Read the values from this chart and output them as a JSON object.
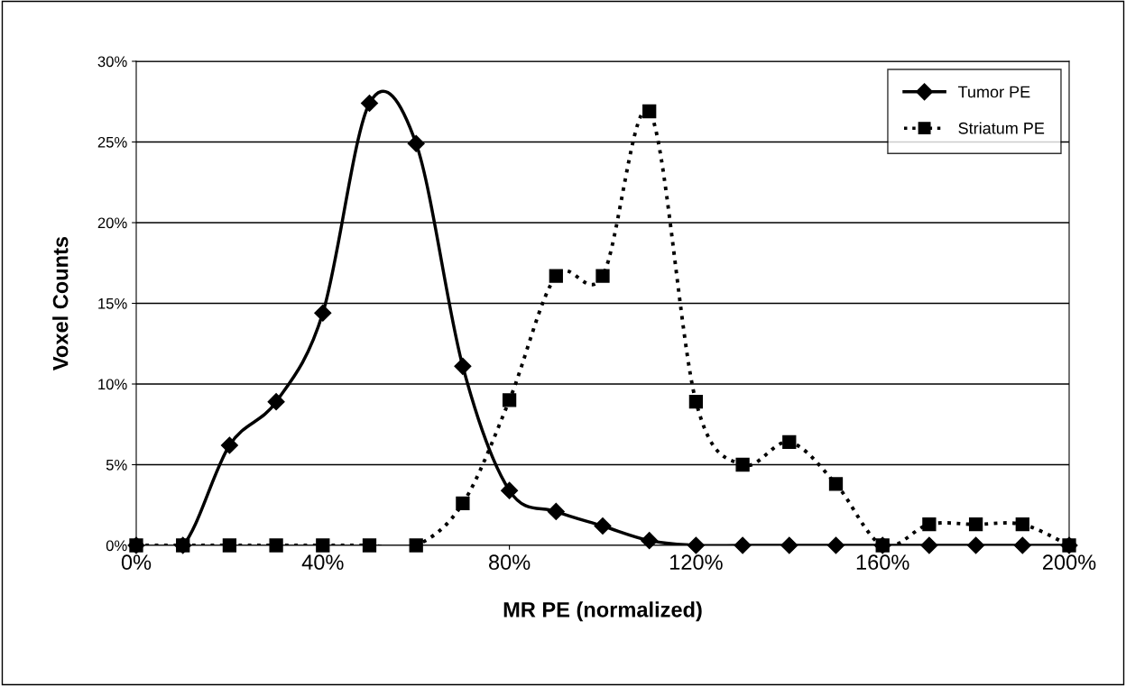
{
  "chart_data": {
    "type": "line",
    "xlabel": "MR PE (normalized)",
    "ylabel": "Voxel Counts",
    "x": [
      0,
      10,
      20,
      30,
      40,
      50,
      60,
      70,
      80,
      90,
      100,
      110,
      120,
      130,
      140,
      150,
      160,
      170,
      180,
      190,
      200
    ],
    "series": [
      {
        "name": "Tumor PE",
        "color": "#000000",
        "marker": "diamond",
        "line_style": "solid",
        "values": [
          0,
          0,
          6.2,
          8.9,
          14.4,
          27.4,
          24.9,
          11.1,
          3.4,
          2.1,
          1.2,
          0.3,
          0,
          0,
          0,
          0,
          0,
          0,
          0,
          0,
          0
        ]
      },
      {
        "name": "Striatum PE",
        "color": "#000000",
        "marker": "square",
        "line_style": "dotted",
        "values": [
          0,
          0,
          0,
          0,
          0,
          0,
          0,
          2.6,
          9.0,
          16.7,
          16.7,
          26.9,
          8.9,
          5.0,
          6.4,
          3.8,
          0,
          1.3,
          1.3,
          1.3,
          0
        ]
      }
    ],
    "xlim": [
      0,
      200
    ],
    "ylim": [
      0,
      30
    ],
    "xticks": [
      {
        "value": 0,
        "label": "0%"
      },
      {
        "value": 40,
        "label": "40%"
      },
      {
        "value": 80,
        "label": "80%"
      },
      {
        "value": 120,
        "label": "120%"
      },
      {
        "value": 160,
        "label": "160%"
      },
      {
        "value": 200,
        "label": "200%"
      }
    ],
    "yticks": [
      {
        "value": 0,
        "label": "0%"
      },
      {
        "value": 5,
        "label": "5%"
      },
      {
        "value": 10,
        "label": "10%"
      },
      {
        "value": 15,
        "label": "15%"
      },
      {
        "value": 20,
        "label": "20%"
      },
      {
        "value": 25,
        "label": "25%"
      },
      {
        "value": 30,
        "label": "30%"
      }
    ],
    "grid": "y",
    "legend": "top right"
  }
}
